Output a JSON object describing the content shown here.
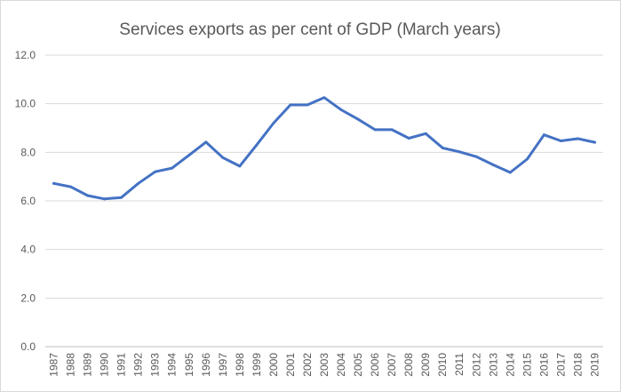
{
  "chart_data": {
    "type": "line",
    "title": "Services exports as per cent of GDP (March years)",
    "xlabel": "",
    "ylabel": "",
    "ylim": [
      0,
      12
    ],
    "yticks": [
      "0.0",
      "2.0",
      "4.0",
      "6.0",
      "8.0",
      "10.0",
      "12.0"
    ],
    "ytick_values": [
      0,
      2,
      4,
      6,
      8,
      10,
      12
    ],
    "grid": true,
    "legend": "none",
    "series_color": "#4472C4",
    "categories": [
      "1987",
      "1988",
      "1989",
      "1990",
      "1991",
      "1992",
      "1993",
      "1994",
      "1995",
      "1996",
      "1997",
      "1998",
      "1999",
      "2000",
      "2001",
      "2002",
      "2003",
      "2004",
      "2005",
      "2006",
      "2007",
      "2008",
      "2009",
      "2010",
      "2011",
      "2012",
      "2013",
      "2014",
      "2015",
      "2016",
      "2017",
      "2018",
      "2019"
    ],
    "series": [
      {
        "name": "Services exports % of GDP",
        "values": [
          6.72,
          6.58,
          6.22,
          6.08,
          6.14,
          6.72,
          7.2,
          7.35,
          7.88,
          8.42,
          7.78,
          7.43,
          8.3,
          9.2,
          9.95,
          9.95,
          10.25,
          9.75,
          9.36,
          8.93,
          8.93,
          8.58,
          8.77,
          8.18,
          8.02,
          7.82,
          7.48,
          7.17,
          7.72,
          8.72,
          8.47,
          8.56,
          8.41
        ]
      }
    ]
  }
}
